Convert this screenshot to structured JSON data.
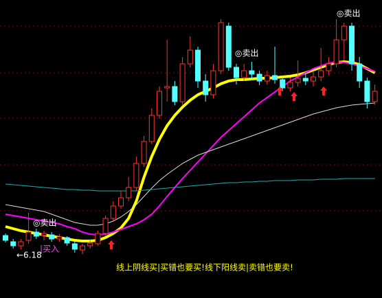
{
  "chart_data": {
    "type": "candlestick",
    "ylim": [
      5.54,
      9.88
    ],
    "up_color": "#ff3232",
    "down_color": "#54ffff",
    "open": [
      6.45,
      6.36,
      6.3,
      6.38,
      6.5,
      6.45,
      6.46,
      6.4,
      6.42,
      6.33,
      6.24,
      6.3,
      6.33,
      6.48,
      6.7,
      6.88,
      7.0,
      7.15,
      7.5,
      7.82,
      8.2,
      8.6,
      8.62,
      8.4,
      8.95,
      9.15,
      8.7,
      8.5,
      8.85,
      9.5,
      8.9,
      8.75,
      8.85,
      8.8,
      8.7,
      8.78,
      8.72,
      8.6,
      8.68,
      8.74,
      8.7,
      8.76,
      8.85,
      8.95,
      9.3,
      9.5,
      8.95,
      8.7,
      8.4
    ],
    "high": [
      6.48,
      6.4,
      6.4,
      6.78,
      6.55,
      6.52,
      6.5,
      6.47,
      6.44,
      6.36,
      6.33,
      6.38,
      6.52,
      6.74,
      6.95,
      7.1,
      7.3,
      7.6,
      7.9,
      8.3,
      8.62,
      9.3,
      8.7,
      9.05,
      9.35,
      9.2,
      8.8,
      8.95,
      9.6,
      9.55,
      8.95,
      8.95,
      8.98,
      8.85,
      8.85,
      9.2,
      8.78,
      8.75,
      9.0,
      8.8,
      8.85,
      9.18,
      9.05,
      9.6,
      9.55,
      9.55,
      9.05,
      8.75,
      8.65
    ],
    "low": [
      6.35,
      6.26,
      6.25,
      6.33,
      6.4,
      6.38,
      6.36,
      6.36,
      6.3,
      6.2,
      6.18,
      6.26,
      6.3,
      6.45,
      6.66,
      6.84,
      6.95,
      7.1,
      7.45,
      7.78,
      8.15,
      8.4,
      8.35,
      8.35,
      8.9,
      8.6,
      8.4,
      8.45,
      8.8,
      8.85,
      8.65,
      8.7,
      8.72,
      8.64,
      8.65,
      8.66,
      8.55,
      8.55,
      8.62,
      8.64,
      8.62,
      8.7,
      8.78,
      8.9,
      9.0,
      8.85,
      8.6,
      8.3,
      8.35
    ],
    "close": [
      6.38,
      6.3,
      6.36,
      6.5,
      6.44,
      6.48,
      6.4,
      6.43,
      6.34,
      6.25,
      6.3,
      6.34,
      6.48,
      6.7,
      6.88,
      7.0,
      7.15,
      7.5,
      7.82,
      8.2,
      8.55,
      8.62,
      8.4,
      8.95,
      9.15,
      8.7,
      8.5,
      8.85,
      9.55,
      8.9,
      8.75,
      8.85,
      8.8,
      8.7,
      8.78,
      8.72,
      8.6,
      8.68,
      8.74,
      8.7,
      8.76,
      8.85,
      8.95,
      9.3,
      9.5,
      8.95,
      8.7,
      8.4,
      8.55
    ],
    "series": [
      {
        "color": "#ffff00",
        "width": 4,
        "values": [
          6.58,
          6.55,
          6.52,
          6.5,
          6.48,
          6.46,
          6.44,
          6.42,
          6.4,
          6.38,
          6.37,
          6.37,
          6.38,
          6.42,
          6.48,
          6.56,
          6.7,
          6.95,
          7.3,
          7.6,
          7.85,
          8.05,
          8.2,
          8.32,
          8.42,
          8.5,
          8.55,
          8.6,
          8.66,
          8.7,
          8.72,
          8.72,
          8.73,
          8.74,
          8.74,
          8.75,
          8.76,
          8.77,
          8.79,
          8.82,
          8.86,
          8.9,
          8.94,
          8.97,
          8.98,
          8.97,
          8.94,
          8.88,
          8.82
        ]
      },
      {
        "color": "#ff00ff",
        "width": 2,
        "values": [
          6.76,
          6.74,
          6.72,
          6.7,
          6.68,
          6.66,
          6.64,
          6.62,
          6.58,
          6.55,
          6.5,
          6.47,
          6.46,
          6.47,
          6.5,
          6.54,
          6.58,
          6.62,
          6.68,
          6.76,
          6.88,
          7.02,
          7.15,
          7.28,
          7.4,
          7.52,
          7.64,
          7.76,
          7.88,
          7.98,
          8.08,
          8.18,
          8.28,
          8.38,
          8.46,
          8.54,
          8.62,
          8.7,
          8.76,
          8.82,
          8.88,
          8.92,
          8.96,
          8.98,
          8.97,
          8.95,
          8.92,
          8.88,
          8.84
        ]
      },
      {
        "color": "#dddddd",
        "width": 1,
        "values": [
          6.9,
          6.88,
          6.86,
          6.84,
          6.82,
          6.8,
          6.76,
          6.72,
          6.68,
          6.64,
          6.62,
          6.6,
          6.6,
          6.62,
          6.66,
          6.72,
          6.8,
          6.9,
          7.02,
          7.14,
          7.25,
          7.34,
          7.42,
          7.5,
          7.56,
          7.62,
          7.66,
          7.7,
          7.74,
          7.78,
          7.82,
          7.86,
          7.9,
          7.94,
          7.98,
          8.02,
          8.06,
          8.1,
          8.14,
          8.18,
          8.22,
          8.25,
          8.28,
          8.31,
          8.33,
          8.35,
          8.36,
          8.37,
          8.38
        ]
      },
      {
        "color": "#1ab0b0",
        "width": 1,
        "values": [
          7.2,
          7.19,
          7.18,
          7.17,
          7.16,
          7.15,
          7.14,
          7.13,
          7.12,
          7.12,
          7.11,
          7.11,
          7.1,
          7.1,
          7.1,
          7.1,
          7.1,
          7.1,
          7.11,
          7.12,
          7.13,
          7.14,
          7.15,
          7.16,
          7.17,
          7.18,
          7.19,
          7.2,
          7.21,
          7.22,
          7.22,
          7.23,
          7.23,
          7.24,
          7.24,
          7.25,
          7.25,
          7.25,
          7.26,
          7.26,
          7.26,
          7.27,
          7.27,
          7.27,
          7.28,
          7.28,
          7.28,
          7.28,
          7.28
        ]
      }
    ],
    "sell_labels": [
      "◎卖出",
      "◎卖出",
      "◎卖出"
    ],
    "buy_label": "|买入",
    "low_label": "←6.18",
    "caption": "线上阴线买|买错也要买!线下阳线卖|卖错也要卖!"
  }
}
